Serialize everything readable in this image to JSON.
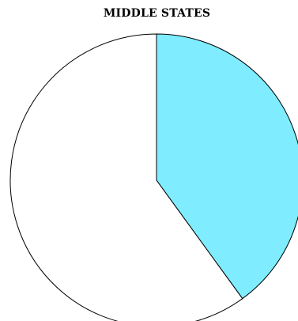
{
  "chart_data": {
    "type": "pie",
    "title": "MIDDLE STATES",
    "slices": [
      {
        "label": "",
        "value": 40,
        "color": "#7fecff"
      },
      {
        "label": "",
        "value": 60,
        "color": "#ffffff"
      }
    ],
    "start_angle_deg": 0,
    "direction": "clockwise",
    "stroke_color": "#000000",
    "legend": "none"
  }
}
